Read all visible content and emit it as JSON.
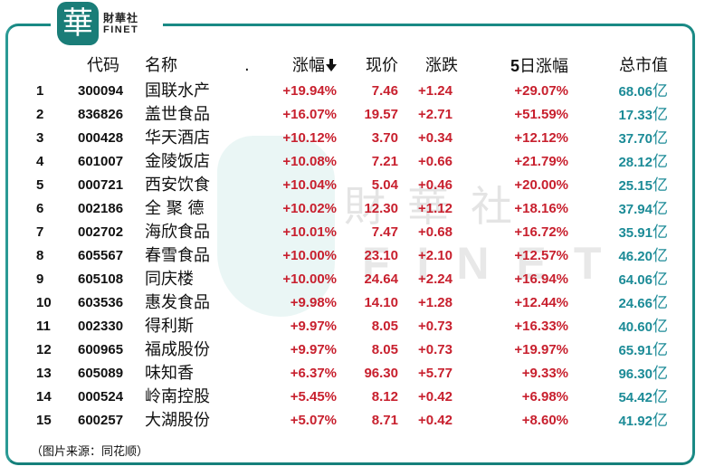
{
  "brand": {
    "logo_glyph": "華",
    "name_cn": "財華社",
    "name_en": "FINET",
    "watermark_cn": "財華社",
    "watermark_en": "FINET",
    "accent_color": "#1a8a85"
  },
  "table": {
    "headers": {
      "code": "代码",
      "name": "名称",
      "dot": ".",
      "change_pct": "涨幅",
      "sort_icon": "arrow-down-icon",
      "price": "现价",
      "change": "涨跌",
      "five_day_digit": "5",
      "five_day_rest": "日涨幅",
      "market_cap": "总市值"
    },
    "unit": "亿",
    "colors": {
      "up": "#c8202e",
      "market_cap": "#1c8b97"
    },
    "rows": [
      {
        "idx": "1",
        "code": "300094",
        "name": "国联水产",
        "change_pct": "+19.94%",
        "price": "7.46",
        "change": "+1.24",
        "five_day": "+29.07%",
        "market_cap": "68.06"
      },
      {
        "idx": "2",
        "code": "836826",
        "name": "盖世食品",
        "change_pct": "+16.07%",
        "price": "19.57",
        "change": "+2.71",
        "five_day": "+51.59%",
        "market_cap": "17.33"
      },
      {
        "idx": "3",
        "code": "000428",
        "name": "华天酒店",
        "change_pct": "+10.12%",
        "price": "3.70",
        "change": "+0.34",
        "five_day": "+12.12%",
        "market_cap": "37.70"
      },
      {
        "idx": "4",
        "code": "601007",
        "name": "金陵饭店",
        "change_pct": "+10.08%",
        "price": "7.21",
        "change": "+0.66",
        "five_day": "+21.79%",
        "market_cap": "28.12"
      },
      {
        "idx": "5",
        "code": "000721",
        "name": "西安饮食",
        "change_pct": "+10.04%",
        "price": "5.04",
        "change": "+0.46",
        "five_day": "+20.00%",
        "market_cap": "25.15"
      },
      {
        "idx": "6",
        "code": "002186",
        "name": "全 聚 德",
        "change_pct": "+10.02%",
        "price": "12.30",
        "change": "+1.12",
        "five_day": "+18.16%",
        "market_cap": "37.94"
      },
      {
        "idx": "7",
        "code": "002702",
        "name": "海欣食品",
        "change_pct": "+10.01%",
        "price": "7.47",
        "change": "+0.68",
        "five_day": "+16.72%",
        "market_cap": "35.91"
      },
      {
        "idx": "8",
        "code": "605567",
        "name": "春雪食品",
        "change_pct": "+10.00%",
        "price": "23.10",
        "change": "+2.10",
        "five_day": "+12.57%",
        "market_cap": "46.20"
      },
      {
        "idx": "9",
        "code": "605108",
        "name": "同庆楼",
        "change_pct": "+10.00%",
        "price": "24.64",
        "change": "+2.24",
        "five_day": "+16.94%",
        "market_cap": "64.06"
      },
      {
        "idx": "10",
        "code": "603536",
        "name": "惠发食品",
        "change_pct": "+9.98%",
        "price": "14.10",
        "change": "+1.28",
        "five_day": "+12.44%",
        "market_cap": "24.66"
      },
      {
        "idx": "11",
        "code": "002330",
        "name": "得利斯",
        "change_pct": "+9.97%",
        "price": "8.05",
        "change": "+0.73",
        "five_day": "+16.33%",
        "market_cap": "40.60"
      },
      {
        "idx": "12",
        "code": "600965",
        "name": "福成股份",
        "change_pct": "+9.97%",
        "price": "8.05",
        "change": "+0.73",
        "five_day": "+19.97%",
        "market_cap": "65.91"
      },
      {
        "idx": "13",
        "code": "605089",
        "name": "味知香",
        "change_pct": "+6.37%",
        "price": "96.30",
        "change": "+5.77",
        "five_day": "+9.33%",
        "market_cap": "96.30"
      },
      {
        "idx": "14",
        "code": "000524",
        "name": "岭南控股",
        "change_pct": "+5.45%",
        "price": "8.12",
        "change": "+0.42",
        "five_day": "+6.98%",
        "market_cap": "54.42"
      },
      {
        "idx": "15",
        "code": "600257",
        "name": "大湖股份",
        "change_pct": "+5.07%",
        "price": "8.71",
        "change": "+0.42",
        "five_day": "+8.60%",
        "market_cap": "41.92"
      }
    ]
  },
  "footnote": "（图片来源：同花顺）"
}
